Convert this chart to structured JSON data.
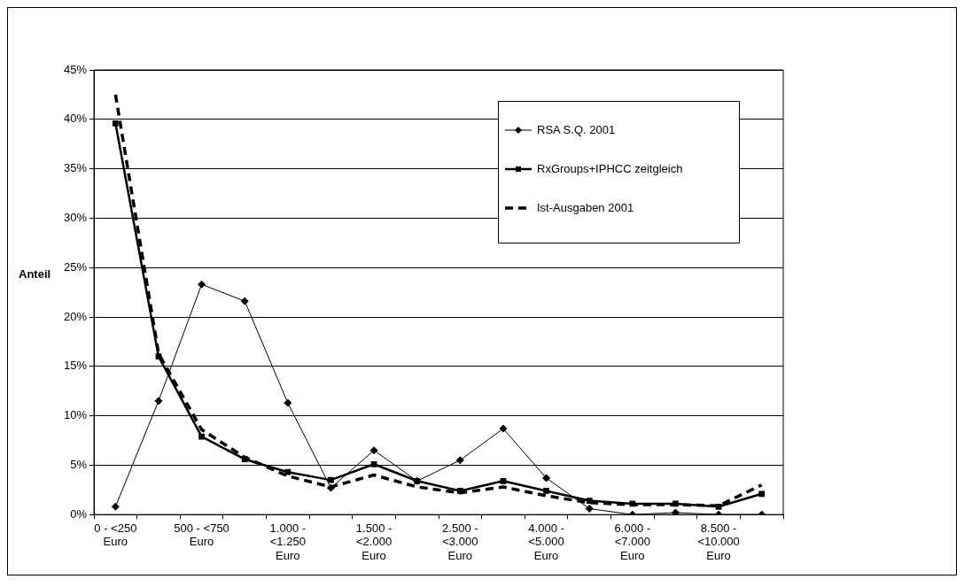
{
  "chart_data": {
    "type": "line",
    "ylabel": "Anteil",
    "categories": [
      "0 - <250 Euro",
      null,
      "500 - <750 Euro",
      null,
      "1.000 - <1.250 Euro",
      null,
      "1.500 - <2.000 Euro",
      null,
      "2.500 - <3.000 Euro",
      null,
      "4.000 - <5.000 Euro",
      null,
      "6.000 - <7.000 Euro",
      null,
      "8.500 - <10.000 Euro",
      null
    ],
    "series": [
      {
        "name": "RSA S.Q. 2001",
        "color": "#000000",
        "marker": "diamond",
        "line_style": "solid",
        "values": [
          0.8,
          11.5,
          23.3,
          21.6,
          11.3,
          2.7,
          6.5,
          3.4,
          5.5,
          8.7,
          3.7,
          0.6,
          0,
          0.2,
          0,
          0
        ]
      },
      {
        "name": "RxGroups+IPHCC zeitgleich",
        "color": "#000000",
        "marker": "square",
        "line_style": "solid",
        "values": [
          39.6,
          16.0,
          7.9,
          5.6,
          4.3,
          3.5,
          5.1,
          3.4,
          2.4,
          3.4,
          2.4,
          1.4,
          1.1,
          1.1,
          0.8,
          2.1
        ]
      },
      {
        "name": "Ist-Ausgaben 2001",
        "color": "#000000",
        "marker": "none",
        "line_style": "dashed",
        "values": [
          42.5,
          16.3,
          8.6,
          5.8,
          3.9,
          2.8,
          4.0,
          2.8,
          2.2,
          2.8,
          1.9,
          1.2,
          1.0,
          1.0,
          0.9,
          3.0
        ]
      }
    ],
    "ylim": [
      0,
      45
    ],
    "yticks": [
      {
        "value": 0,
        "label": "0%"
      },
      {
        "value": 5,
        "label": "5%"
      },
      {
        "value": 10,
        "label": "10%"
      },
      {
        "value": 15,
        "label": "15%"
      },
      {
        "value": 20,
        "label": "20%"
      },
      {
        "value": 25,
        "label": "25%"
      },
      {
        "value": 30,
        "label": "30%"
      },
      {
        "value": 35,
        "label": "35%"
      },
      {
        "value": 40,
        "label": "40%"
      },
      {
        "value": 45,
        "label": "45%"
      }
    ],
    "grid": "y",
    "legend": "top right"
  }
}
